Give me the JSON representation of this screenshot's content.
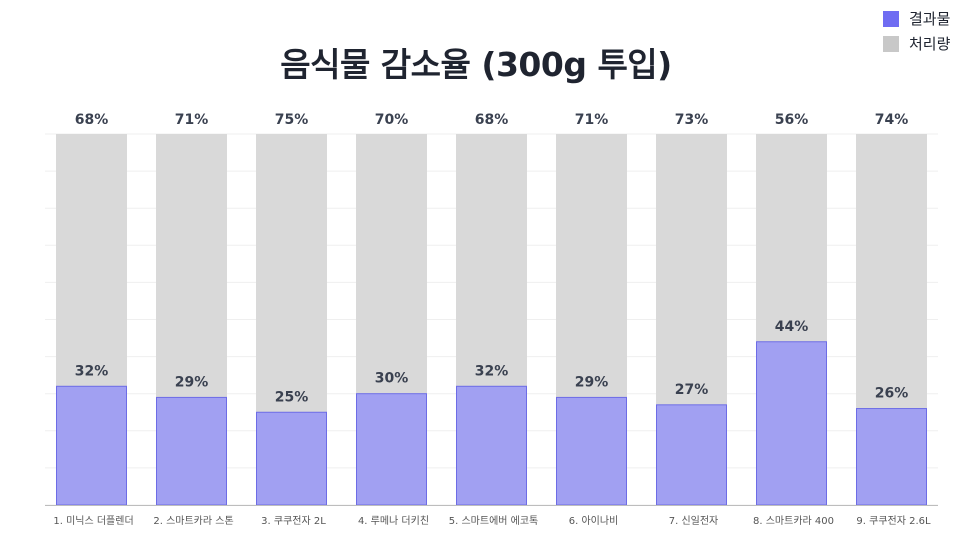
{
  "chart_data": {
    "type": "bar",
    "stacked": true,
    "title": "음식물 감소율 (300g 투입)",
    "categories": [
      "1. 미닉스 더플렌더",
      "2. 스마트카라 스톤",
      "3. 쿠쿠전자 2L",
      "4. 루메나 더키친",
      "5. 스마트에버 에코톡",
      "6. 아이나비",
      "7. 신일전자",
      "8. 스마트카라 400",
      "9. 쿠쿠전자 2.6L"
    ],
    "series": [
      {
        "name": "결과물",
        "values": [
          32,
          29,
          25,
          30,
          32,
          29,
          27,
          44,
          26
        ],
        "labels": [
          "32%",
          "29%",
          "25%",
          "30%",
          "32%",
          "29%",
          "27%",
          "44%",
          "26%"
        ],
        "color": "#a1a0f2"
      },
      {
        "name": "처리량",
        "values": [
          68,
          71,
          75,
          70,
          68,
          71,
          73,
          56,
          74
        ],
        "labels": [
          "68%",
          "71%",
          "75%",
          "70%",
          "68%",
          "71%",
          "73%",
          "56%",
          "74%"
        ],
        "color": "#d9d9d9"
      }
    ],
    "ylim": [
      0,
      100
    ],
    "grid": true,
    "legend": "top-right",
    "legend_swatch_colors": [
      "#6f6cf2",
      "#c8c8c8"
    ],
    "bar_outline_color": "#6d6ce6",
    "label_color": "#3a4150"
  }
}
